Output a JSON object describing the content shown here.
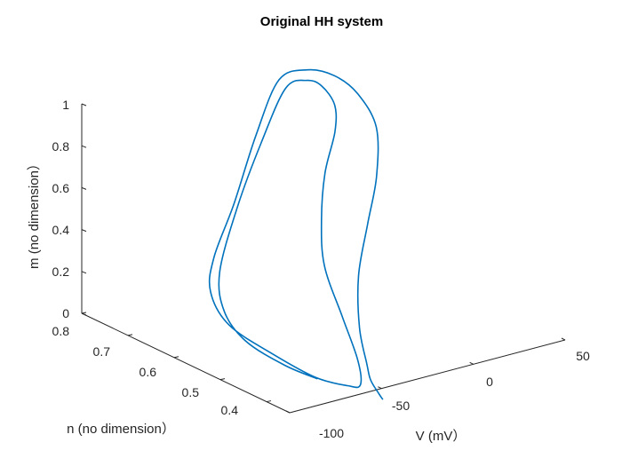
{
  "chart_data": {
    "type": "line",
    "title": "Original HH system",
    "xlabel": "V (mV）",
    "ylabel": "n (no dimension）",
    "zlabel": "m (no dimension）",
    "x_ticks": [
      "-100",
      "-50",
      "0",
      "50"
    ],
    "y_ticks": [
      "0.4",
      "0.5",
      "0.6",
      "0.7",
      "0.8"
    ],
    "z_ticks": [
      "0",
      "0.2",
      "0.4",
      "0.6",
      "0.8",
      "1"
    ],
    "xlim": [
      -100,
      50
    ],
    "ylim": [
      0.35,
      0.8
    ],
    "zlim": [
      0,
      1
    ],
    "grid": false,
    "series_color": "#0072BD",
    "series": [
      {
        "points": [
          [
            -62,
            0.3,
            0.03
          ],
          [
            -64,
            0.3,
            0.06
          ],
          [
            -66,
            0.31,
            0.12
          ],
          [
            -68,
            0.31,
            0.2
          ],
          [
            -67,
            0.33,
            0.35
          ],
          [
            -60,
            0.36,
            0.55
          ],
          [
            -45,
            0.4,
            0.72
          ],
          [
            -25,
            0.46,
            0.84
          ],
          [
            0,
            0.56,
            0.91
          ],
          [
            15,
            0.66,
            0.93
          ],
          [
            20,
            0.73,
            0.93
          ],
          [
            18,
            0.78,
            0.91
          ],
          [
            10,
            0.81,
            0.85
          ],
          [
            0,
            0.82,
            0.6
          ],
          [
            -12,
            0.82,
            0.3
          ],
          [
            -28,
            0.8,
            0.1
          ],
          [
            -45,
            0.74,
            0.04
          ],
          [
            -60,
            0.64,
            0.02
          ],
          [
            -66,
            0.52,
            0.02
          ],
          [
            -68,
            0.42,
            0.02
          ],
          [
            -66,
            0.36,
            0.04
          ],
          [
            -64,
            0.34,
            0.06
          ],
          [
            -68,
            0.33,
            0.2
          ],
          [
            -69,
            0.36,
            0.38
          ],
          [
            -66,
            0.41,
            0.56
          ],
          [
            -55,
            0.46,
            0.7
          ],
          [
            -38,
            0.52,
            0.82
          ],
          [
            -15,
            0.59,
            0.89
          ],
          [
            0,
            0.65,
            0.92
          ],
          [
            8,
            0.71,
            0.93
          ],
          [
            10,
            0.75,
            0.91
          ],
          [
            6,
            0.78,
            0.85
          ],
          [
            -5,
            0.79,
            0.6
          ],
          [
            -20,
            0.78,
            0.35
          ],
          [
            -40,
            0.74,
            0.12
          ],
          [
            -55,
            0.67,
            0.04
          ],
          [
            -66,
            0.58,
            0.02
          ],
          [
            -70,
            0.48,
            0.02
          ],
          [
            -70,
            0.41,
            0.03
          ]
        ]
      }
    ]
  }
}
